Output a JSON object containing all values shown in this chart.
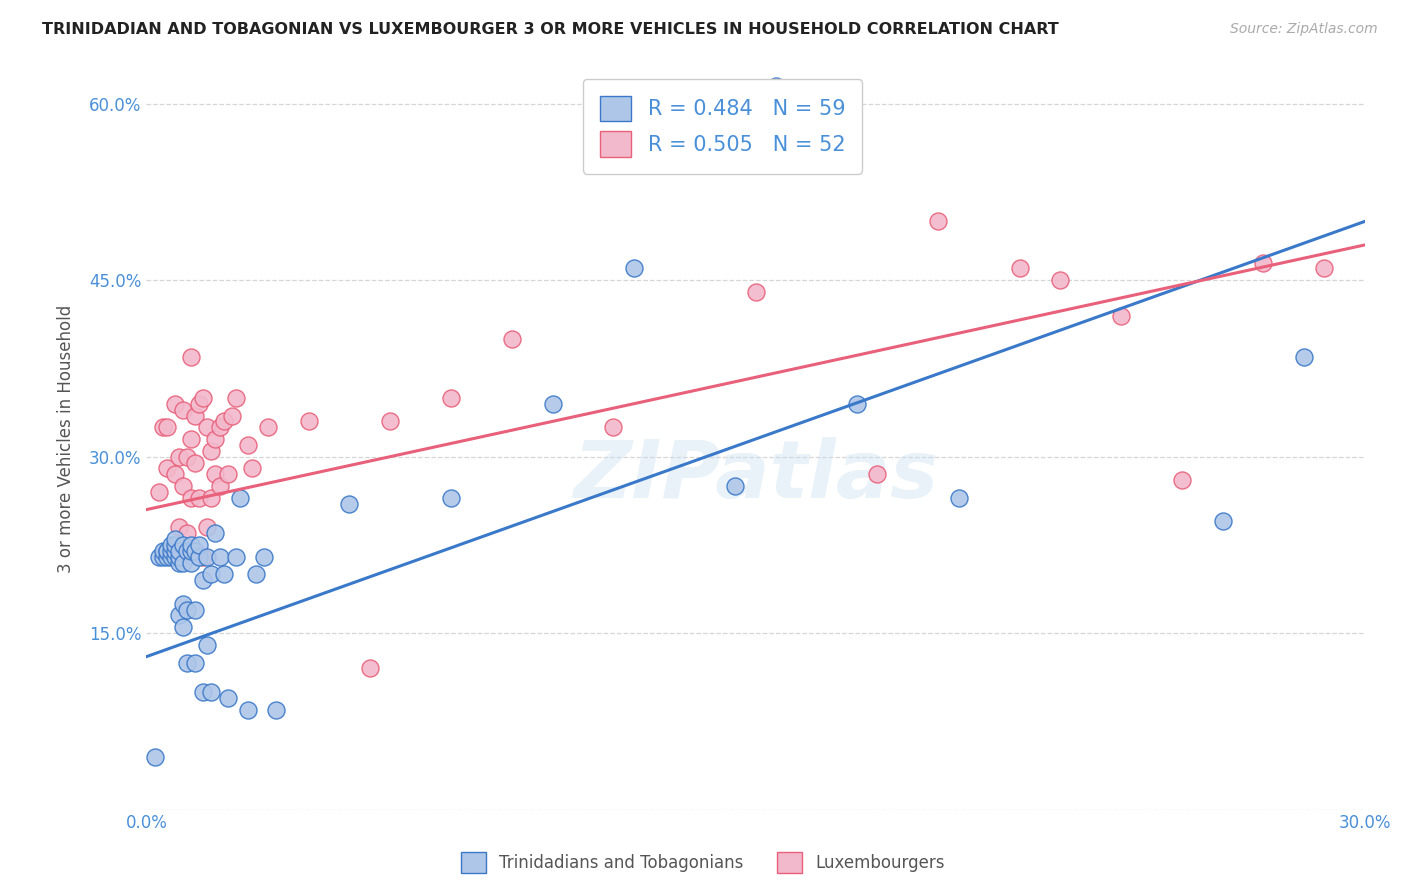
{
  "title": "TRINIDADIAN AND TOBAGONIAN VS LUXEMBOURGER 3 OR MORE VEHICLES IN HOUSEHOLD CORRELATION CHART",
  "source": "Source: ZipAtlas.com",
  "ylabel": "3 or more Vehicles in Household",
  "xlabel": "",
  "xlim": [
    0.0,
    0.3
  ],
  "ylim": [
    0.0,
    0.63
  ],
  "xticks": [
    0.0,
    0.05,
    0.1,
    0.15,
    0.2,
    0.25,
    0.3
  ],
  "xticklabels": [
    "0.0%",
    "",
    "",
    "",
    "",
    "",
    "30.0%"
  ],
  "yticks": [
    0.0,
    0.15,
    0.3,
    0.45,
    0.6
  ],
  "yticklabels": [
    "",
    "15.0%",
    "30.0%",
    "45.0%",
    "60.0%"
  ],
  "r_blue": 0.484,
  "n_blue": 59,
  "r_pink": 0.505,
  "n_pink": 52,
  "blue_color": "#aec6e8",
  "pink_color": "#f2b8cb",
  "blue_line_color": "#3a78c9",
  "pink_line_color": "#e8607a",
  "legend_text_color": "#4a90d9",
  "watermark": "ZIPatlas",
  "blue_scatter_x": [
    0.002,
    0.003,
    0.004,
    0.004,
    0.005,
    0.005,
    0.005,
    0.006,
    0.006,
    0.006,
    0.007,
    0.007,
    0.007,
    0.007,
    0.008,
    0.008,
    0.008,
    0.008,
    0.009,
    0.009,
    0.009,
    0.009,
    0.01,
    0.01,
    0.01,
    0.011,
    0.011,
    0.011,
    0.012,
    0.012,
    0.012,
    0.013,
    0.013,
    0.014,
    0.014,
    0.015,
    0.015,
    0.016,
    0.016,
    0.017,
    0.018,
    0.019,
    0.02,
    0.022,
    0.023,
    0.025,
    0.027,
    0.029,
    0.032,
    0.05,
    0.075,
    0.1,
    0.12,
    0.145,
    0.155,
    0.175,
    0.2,
    0.265,
    0.285
  ],
  "blue_scatter_y": [
    0.045,
    0.215,
    0.215,
    0.22,
    0.215,
    0.22,
    0.22,
    0.215,
    0.22,
    0.225,
    0.215,
    0.22,
    0.225,
    0.23,
    0.165,
    0.21,
    0.215,
    0.22,
    0.155,
    0.175,
    0.21,
    0.225,
    0.125,
    0.17,
    0.22,
    0.21,
    0.22,
    0.225,
    0.125,
    0.17,
    0.22,
    0.215,
    0.225,
    0.1,
    0.195,
    0.14,
    0.215,
    0.1,
    0.2,
    0.235,
    0.215,
    0.2,
    0.095,
    0.215,
    0.265,
    0.085,
    0.2,
    0.215,
    0.085,
    0.26,
    0.265,
    0.345,
    0.46,
    0.275,
    0.615,
    0.345,
    0.265,
    0.245,
    0.385
  ],
  "pink_scatter_x": [
    0.003,
    0.004,
    0.005,
    0.005,
    0.006,
    0.007,
    0.007,
    0.008,
    0.008,
    0.009,
    0.009,
    0.01,
    0.01,
    0.011,
    0.011,
    0.011,
    0.012,
    0.012,
    0.013,
    0.013,
    0.014,
    0.014,
    0.015,
    0.015,
    0.016,
    0.016,
    0.017,
    0.017,
    0.018,
    0.018,
    0.019,
    0.02,
    0.021,
    0.022,
    0.025,
    0.026,
    0.03,
    0.04,
    0.055,
    0.06,
    0.075,
    0.09,
    0.115,
    0.15,
    0.18,
    0.195,
    0.215,
    0.225,
    0.24,
    0.255,
    0.275,
    0.29
  ],
  "pink_scatter_y": [
    0.27,
    0.325,
    0.29,
    0.325,
    0.22,
    0.285,
    0.345,
    0.24,
    0.3,
    0.275,
    0.34,
    0.235,
    0.3,
    0.265,
    0.315,
    0.385,
    0.295,
    0.335,
    0.265,
    0.345,
    0.215,
    0.35,
    0.24,
    0.325,
    0.265,
    0.305,
    0.285,
    0.315,
    0.275,
    0.325,
    0.33,
    0.285,
    0.335,
    0.35,
    0.31,
    0.29,
    0.325,
    0.33,
    0.12,
    0.33,
    0.35,
    0.4,
    0.325,
    0.44,
    0.285,
    0.5,
    0.46,
    0.45,
    0.42,
    0.28,
    0.465,
    0.46
  ],
  "blue_line_x0": 0.0,
  "blue_line_y0": 0.13,
  "blue_line_x1": 0.3,
  "blue_line_y1": 0.5,
  "pink_line_x0": 0.0,
  "pink_line_y0": 0.255,
  "pink_line_x1": 0.3,
  "pink_line_y1": 0.48
}
